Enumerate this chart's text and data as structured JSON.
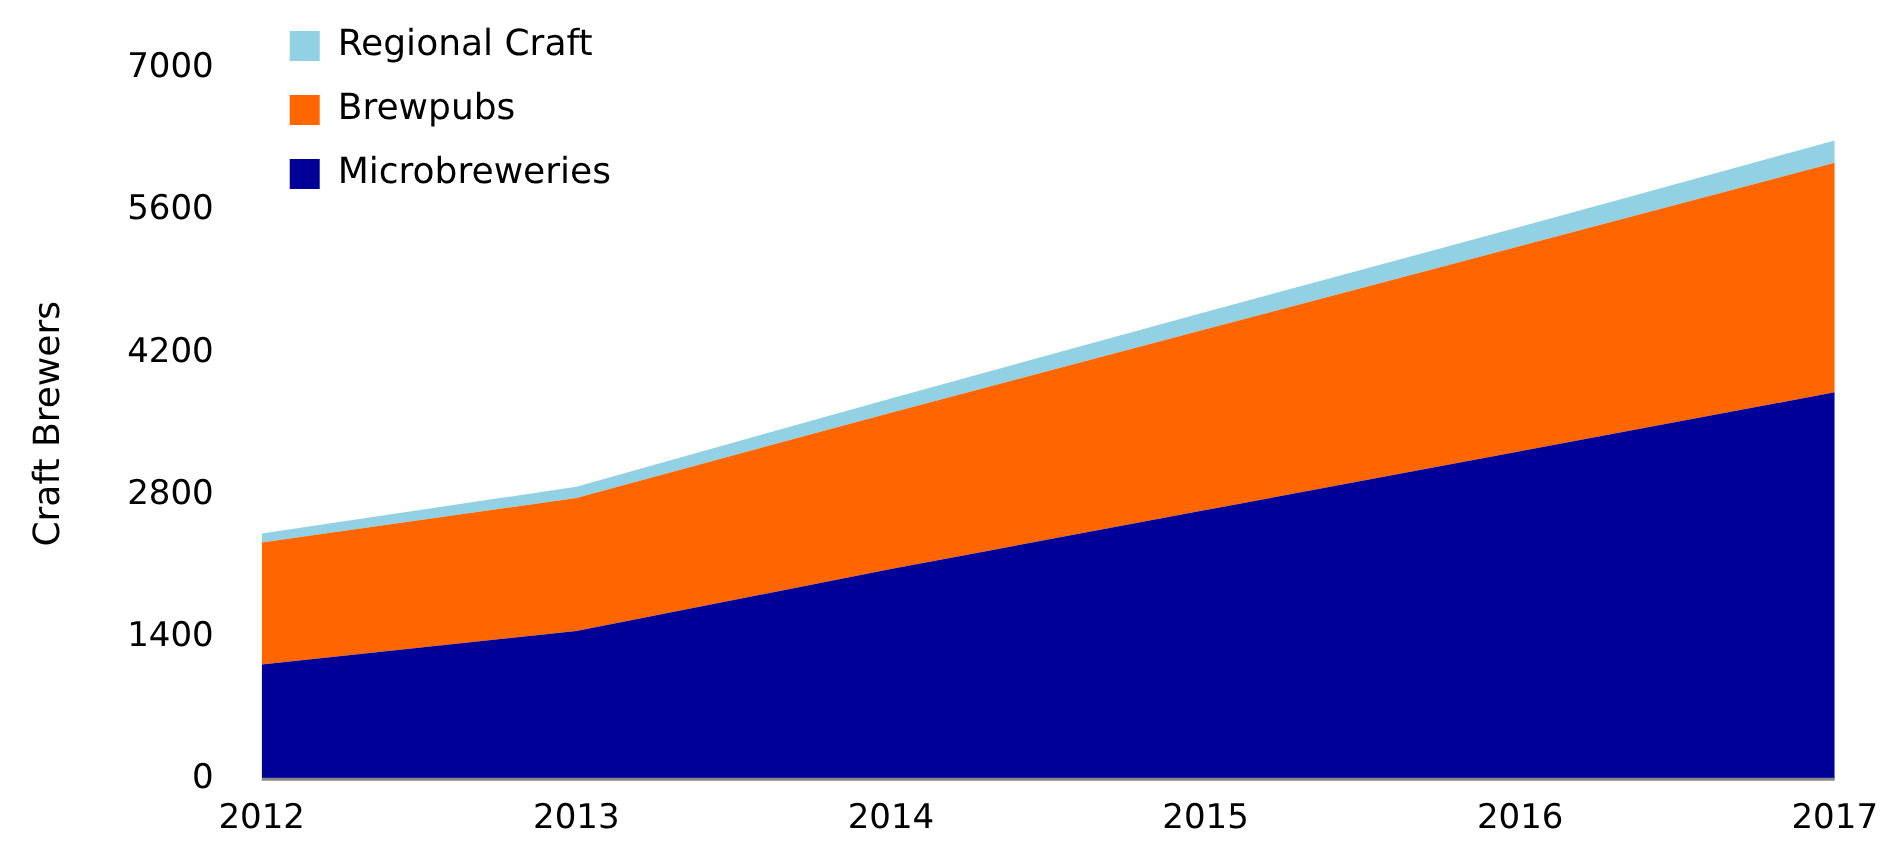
{
  "chart_data": {
    "type": "area",
    "ylabel": "Craft Brewers",
    "categories": [
      "2012",
      "2013",
      "2014",
      "2015",
      "2016",
      "2017"
    ],
    "stacked": true,
    "series": [
      {
        "name": "Microbreweries",
        "color": "#000099",
        "values": [
          1130,
          1460,
          2070,
          2650,
          3230,
          3810
        ]
      },
      {
        "name": "Brewpubs",
        "color": "#ff6600",
        "values": [
          1200,
          1310,
          1540,
          1780,
          2020,
          2260
        ]
      },
      {
        "name": "Regional Craft",
        "color": "#92d1e3",
        "values": [
          90,
          110,
          140,
          170,
          190,
          220
        ]
      }
    ],
    "ylim": [
      0,
      7000
    ],
    "yticks": [
      0,
      1400,
      2800,
      4200,
      5600,
      7000
    ],
    "grid": false,
    "legend": "top left"
  }
}
